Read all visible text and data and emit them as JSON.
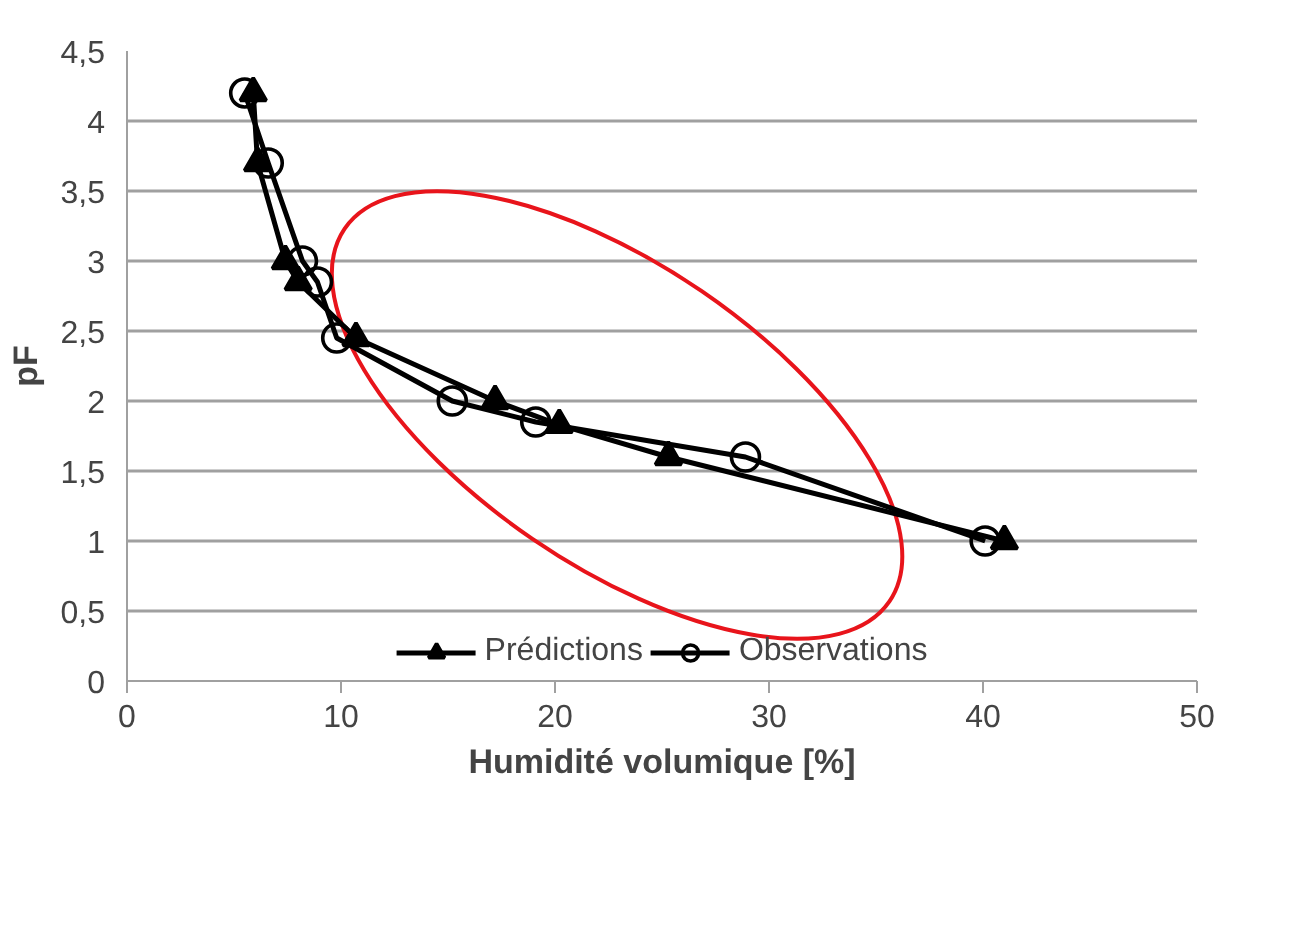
{
  "chart_data": {
    "type": "line",
    "xlabel": "Humidité volumique [%]",
    "ylabel": "pF",
    "xlim": [
      0,
      50
    ],
    "xticks": [
      0,
      10,
      20,
      30,
      40,
      50
    ],
    "ylim": [
      0,
      4.5
    ],
    "yticks": [
      0,
      {
        "value": 0.5,
        "label": "0,5"
      },
      1,
      {
        "value": 1.5,
        "label": "1,5"
      },
      2,
      {
        "value": 2.5,
        "label": "2,5"
      },
      3,
      {
        "value": 3.5,
        "label": "3,5"
      },
      4,
      {
        "value": 4.5,
        "label": "4,5"
      }
    ],
    "grid": "y",
    "legend": "bottom",
    "line_style": "solid",
    "series": [
      {
        "name": "Prédictions",
        "color": "#000000",
        "marker": "triangle",
        "x": [
          5.9,
          6.1,
          7.4,
          8.0,
          10.7,
          17.2,
          20.2,
          25.3,
          41.0
        ],
        "values": [
          4.2,
          3.7,
          3.0,
          2.85,
          2.45,
          2.0,
          1.83,
          1.6,
          1.0
        ]
      },
      {
        "name": "Observations",
        "color": "#000000",
        "marker": "circle",
        "x": [
          5.5,
          6.6,
          8.2,
          8.9,
          9.8,
          15.2,
          19.1,
          28.9,
          40.1
        ],
        "values": [
          4.2,
          3.7,
          3.0,
          2.85,
          2.45,
          2.0,
          1.85,
          1.6,
          1.0
        ]
      }
    ]
  }
}
